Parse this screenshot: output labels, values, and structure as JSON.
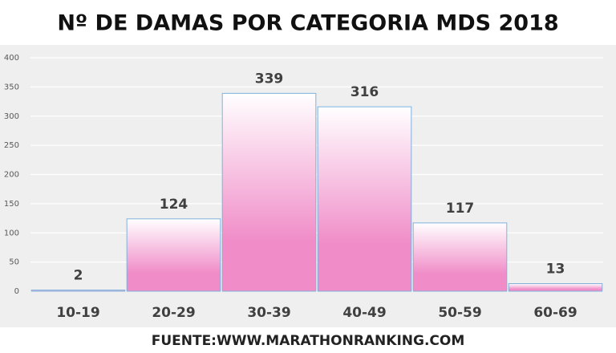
{
  "chart_data": {
    "type": "bar",
    "title": "Nº DE DAMAS POR CATEGORIA MDS 2018",
    "categories": [
      "10-19",
      "20-29",
      "30-39",
      "40-49",
      "50-59",
      "60-69"
    ],
    "values": [
      2,
      124,
      339,
      316,
      117,
      13
    ],
    "color": "#f08cc8",
    "edge_color": "#7fb2dc",
    "ylim": [
      0,
      400
    ],
    "yticks": [
      0,
      50,
      100,
      150,
      200,
      250,
      300,
      350,
      400
    ],
    "grid": true,
    "source": "FUENTE:WWW.MARATHONRANKING.COM"
  }
}
